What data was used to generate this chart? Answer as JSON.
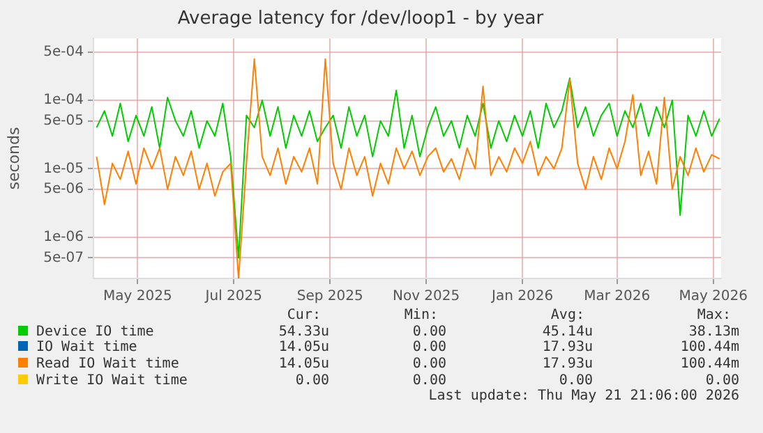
{
  "chart_data": {
    "type": "line",
    "title": "Average latency for /dev/loop1 - by year",
    "ylabel": "seconds",
    "log": "y",
    "grid": true,
    "legend": "bottom",
    "marker": "none",
    "line_style": "solid",
    "x": [
      "2025-04-20",
      "2025-04-25",
      "2025-04-30",
      "2025-05-05",
      "2025-05-10",
      "2025-05-15",
      "2025-05-20",
      "2025-05-25",
      "2025-05-30",
      "2025-06-04",
      "2025-06-09",
      "2025-06-14",
      "2025-06-19",
      "2025-06-24",
      "2025-06-29",
      "2025-07-04",
      "2025-07-09",
      "2025-07-14",
      "2025-07-19",
      "2025-07-24",
      "2025-07-29",
      "2025-08-03",
      "2025-08-08",
      "2025-08-13",
      "2025-08-18",
      "2025-08-23",
      "2025-08-28",
      "2025-09-02",
      "2025-09-07",
      "2025-09-12",
      "2025-09-17",
      "2025-09-22",
      "2025-09-27",
      "2025-10-02",
      "2025-10-07",
      "2025-10-12",
      "2025-10-17",
      "2025-10-22",
      "2025-10-27",
      "2025-11-01",
      "2025-11-06",
      "2025-11-11",
      "2025-11-16",
      "2025-11-21",
      "2025-11-26",
      "2025-12-01",
      "2025-12-06",
      "2025-12-11",
      "2025-12-16",
      "2025-12-21",
      "2025-12-26",
      "2025-12-31",
      "2026-01-05",
      "2026-01-10",
      "2026-01-15",
      "2026-01-20",
      "2026-01-25",
      "2026-01-30",
      "2026-02-04",
      "2026-02-09",
      "2026-02-14",
      "2026-02-19",
      "2026-02-24",
      "2026-03-01",
      "2026-03-06",
      "2026-03-11",
      "2026-03-16",
      "2026-03-21",
      "2026-03-26",
      "2026-03-31",
      "2026-04-05",
      "2026-04-10",
      "2026-04-15",
      "2026-04-20",
      "2026-04-25",
      "2026-04-30",
      "2026-05-05",
      "2026-05-10",
      "2026-05-15",
      "2026-05-20"
    ],
    "xlim": [
      "2025-04-18",
      "2026-05-21"
    ],
    "xticks": [
      {
        "value": "2025-05-16",
        "label": "May 2025"
      },
      {
        "value": "2025-07-16",
        "label": "Jul 2025"
      },
      {
        "value": "2025-09-15",
        "label": "Sep 2025"
      },
      {
        "value": "2025-11-15",
        "label": "Nov 2025"
      },
      {
        "value": "2026-01-15",
        "label": "Jan 2026"
      },
      {
        "value": "2026-03-16",
        "label": "Mar 2026"
      },
      {
        "value": "2026-05-16",
        "label": "May 2026"
      }
    ],
    "ylim": [
      2.5e-07,
      0.0008
    ],
    "yticks": [
      {
        "value": 5e-07,
        "label": "5e-07"
      },
      {
        "value": 1e-06,
        "label": "1e-06"
      },
      {
        "value": 5e-06,
        "label": "5e-06"
      },
      {
        "value": 1e-05,
        "label": "1e-05"
      },
      {
        "value": 5e-05,
        "label": "5e-05"
      },
      {
        "value": 0.0001,
        "label": "1e-04"
      },
      {
        "value": 0.0005,
        "label": "5e-04"
      }
    ],
    "series": [
      {
        "name": "Device IO time",
        "color": "#00cc00",
        "values": [
          4e-05,
          7e-05,
          3e-05,
          9e-05,
          2.5e-05,
          6e-05,
          3e-05,
          8e-05,
          2e-05,
          0.00011,
          5e-05,
          3e-05,
          7e-05,
          2e-05,
          5e-05,
          3e-05,
          9e-05,
          1.5e-05,
          5e-07,
          6e-05,
          4e-05,
          0.0001,
          3e-05,
          8e-05,
          2e-05,
          6e-05,
          3e-05,
          7e-05,
          2.5e-05,
          4e-05,
          6e-05,
          2e-05,
          8e-05,
          3e-05,
          6e-05,
          1.5e-05,
          5e-05,
          3e-05,
          0.00014,
          2e-05,
          6e-05,
          1.5e-05,
          4e-05,
          8e-05,
          3e-05,
          5e-05,
          2e-05,
          6e-05,
          3e-05,
          9e-05,
          2e-05,
          5e-05,
          2.5e-05,
          6e-05,
          3e-05,
          7e-05,
          2e-05,
          9e-05,
          4e-05,
          7e-05,
          0.00021,
          4e-05,
          8e-05,
          3e-05,
          6e-05,
          9e-05,
          3e-05,
          7e-05,
          4e-05,
          9e-05,
          3e-05,
          8e-05,
          4e-05,
          0.0001,
          2.1e-06,
          6e-05,
          3e-05,
          7e-05,
          3e-05,
          5.4e-05
        ]
      },
      {
        "name": "IO Wait time",
        "color": "#0066b3",
        "values": [
          null,
          null,
          null,
          null,
          null,
          null,
          null,
          null,
          null,
          null,
          null,
          null,
          null,
          null,
          null,
          null,
          null,
          null,
          null,
          null,
          null,
          null,
          null,
          null,
          null,
          null,
          null,
          null,
          null,
          null,
          null,
          null,
          null,
          null,
          null,
          null,
          null,
          null,
          null,
          null,
          null,
          null,
          null,
          null,
          null,
          null,
          null,
          null,
          null,
          null,
          null,
          null,
          null,
          null,
          null,
          null,
          null,
          null,
          null,
          null,
          null,
          null,
          null,
          null,
          null,
          null,
          null,
          null,
          null,
          null,
          null,
          null,
          null,
          null,
          null,
          null,
          null,
          null,
          null,
          null
        ]
      },
      {
        "name": "Read IO Wait time",
        "color": "#ff8000",
        "values": [
          1.5e-05,
          3e-06,
          1.2e-05,
          7e-06,
          1.8e-05,
          6e-06,
          2e-05,
          1e-05,
          2e-05,
          5e-06,
          1.5e-05,
          8e-06,
          1.8e-05,
          5e-06,
          1.2e-05,
          4e-06,
          9e-06,
          1.2e-05,
          2.5e-07,
          1.2e-05,
          0.0004,
          1.5e-05,
          8e-06,
          2e-05,
          6e-06,
          1.5e-05,
          9e-06,
          2e-05,
          6e-06,
          0.0004,
          1.2e-05,
          5e-06,
          2e-05,
          8e-06,
          1.5e-05,
          4e-06,
          1.2e-05,
          6e-06,
          2e-05,
          1e-05,
          1.8e-05,
          8e-06,
          1.5e-05,
          2e-05,
          9e-06,
          1.4e-05,
          7e-06,
          2e-05,
          1e-05,
          0.00016,
          8e-06,
          1.5e-05,
          9e-06,
          2e-05,
          1.2e-05,
          2.5e-05,
          8e-06,
          1.5e-05,
          1e-05,
          2e-05,
          0.0002,
          1.2e-05,
          5e-06,
          1.5e-05,
          7e-06,
          2e-05,
          1e-05,
          2.5e-05,
          0.00012,
          8e-06,
          1.8e-05,
          6e-06,
          0.00011,
          5e-06,
          1.5e-05,
          8e-06,
          2e-05,
          9e-06,
          1.6e-05,
          1.4e-05
        ]
      },
      {
        "name": "Write IO Wait time",
        "color": "#ffcc00",
        "values": [
          null,
          null,
          null,
          null,
          null,
          null,
          null,
          null,
          null,
          null,
          null,
          null,
          null,
          null,
          null,
          null,
          null,
          null,
          null,
          null,
          null,
          null,
          null,
          null,
          null,
          null,
          null,
          null,
          null,
          null,
          null,
          null,
          null,
          null,
          null,
          null,
          null,
          null,
          null,
          null,
          null,
          null,
          null,
          null,
          null,
          null,
          null,
          null,
          null,
          null,
          null,
          null,
          null,
          null,
          null,
          null,
          null,
          null,
          null,
          null,
          null,
          null,
          null,
          null,
          null,
          null,
          null,
          null,
          null,
          null,
          null,
          null,
          null,
          null,
          null,
          null,
          null,
          null,
          null,
          null
        ]
      }
    ],
    "annotations": [
      "Cur:",
      "Min:",
      "Avg:",
      "Max:",
      "54.33u",
      "0.00",
      "45.14u",
      "38.13m",
      "14.05u",
      "0.00",
      "17.93u",
      "100.44m",
      "14.05u",
      "0.00",
      "17.93u",
      "100.44m",
      "0.00",
      "0.00",
      "0.00",
      "0.00",
      "Last update: Thu May 21 21:06:00 2026"
    ]
  }
}
